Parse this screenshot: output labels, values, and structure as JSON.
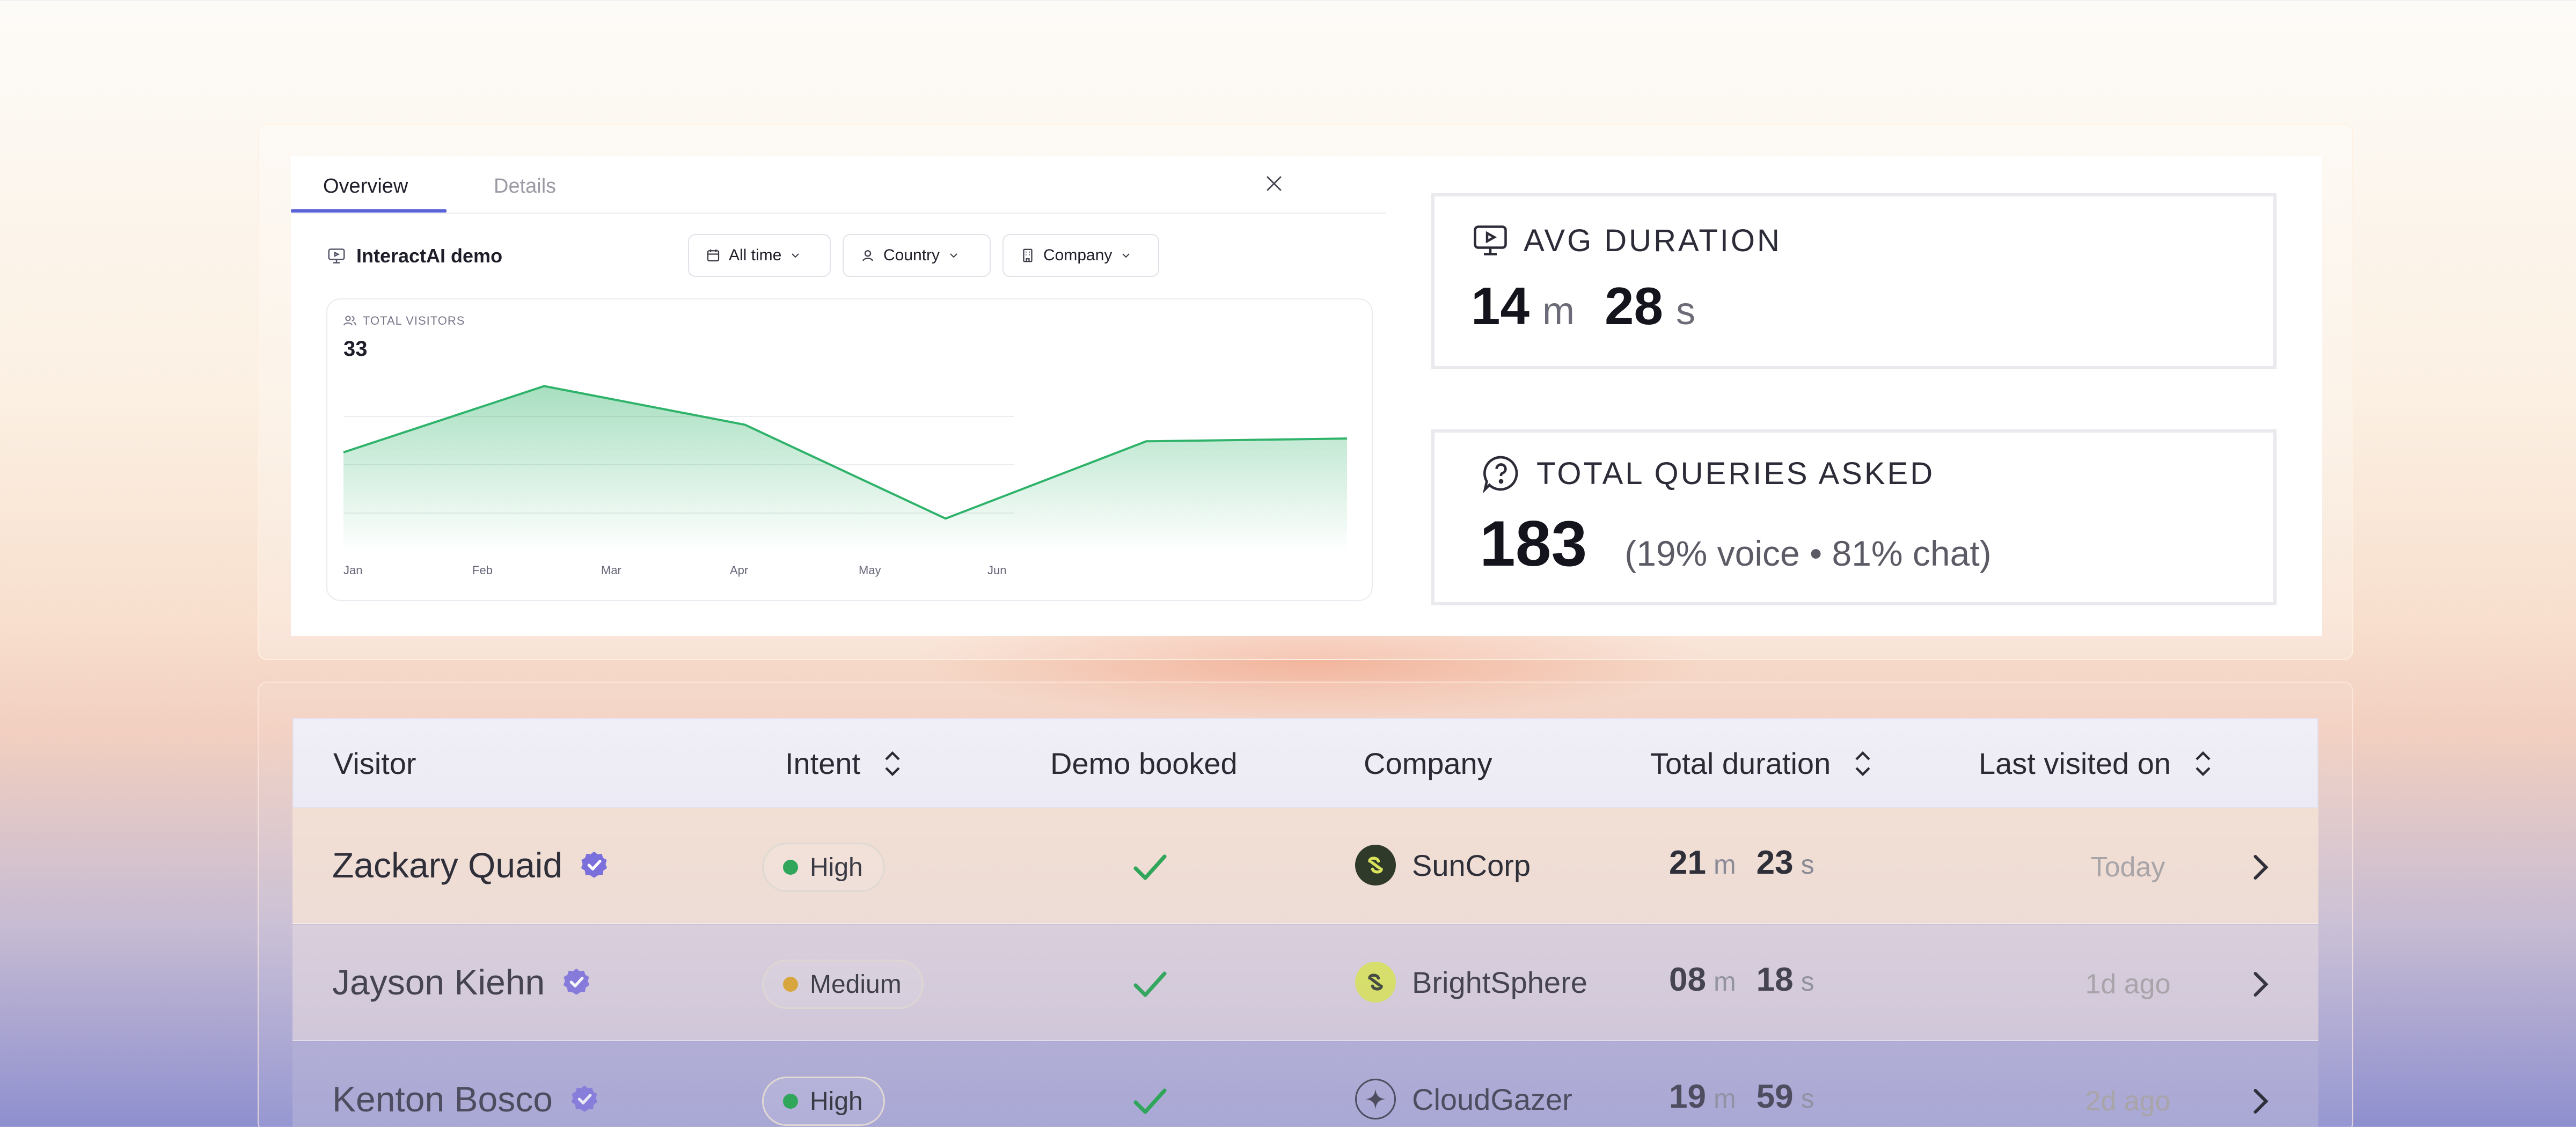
{
  "tabs": [
    {
      "label": "Overview",
      "active": true
    },
    {
      "label": "Details",
      "active": false
    }
  ],
  "demo": {
    "title": "InteractAI demo",
    "icon": "monitor-play-icon"
  },
  "filters": {
    "time": "All time",
    "country": "Country",
    "company": "Company"
  },
  "chart": {
    "label": "TOTAL VISITORS",
    "total": "33"
  },
  "chart_data": {
    "type": "area",
    "title": "",
    "categories": [
      "Jan",
      "Feb",
      "Mar",
      "Apr",
      "May",
      "Jun"
    ],
    "series": [
      {
        "values": [
          18,
          30,
          23,
          6,
          20,
          20.5
        ]
      }
    ],
    "ylim": [
      0,
      35
    ],
    "grid": true,
    "color": "#2fb36a"
  },
  "stats": {
    "avg": {
      "title": "AVG DURATION",
      "minutes": "14",
      "minutes_unit": "m",
      "seconds": "28",
      "seconds_unit": "s",
      "icon": "monitor-play-icon"
    },
    "queries": {
      "title": "TOTAL QUERIES ASKED",
      "value": "183",
      "breakdown": "(19% voice • 81% chat)",
      "icon": "chat-question-icon"
    }
  },
  "table": {
    "columns": {
      "visitor": "Visitor",
      "intent": "Intent",
      "demo": "Demo booked",
      "company": "Company",
      "duration": "Total duration",
      "last": "Last visited on"
    },
    "rows": [
      {
        "name": "Zackary Quaid",
        "intent": "High",
        "intent_color": "#2fa65a",
        "demo_booked": true,
        "company": "SunCorp",
        "company_logo_bg": "#2f3a2b",
        "company_logo_fg": "#d9e35b",
        "min": "21",
        "sec": "23",
        "last": "Today"
      },
      {
        "name": "Jayson Kiehn",
        "intent": "Medium",
        "intent_color": "#d9a636",
        "demo_booked": true,
        "company": "BrightSphere",
        "company_logo_bg": "#d9e35b",
        "company_logo_fg": "#2f3a2b",
        "min": "08",
        "sec": "18",
        "last": "1d ago"
      },
      {
        "name": "Kenton Bosco",
        "intent": "High",
        "intent_color": "#2fa65a",
        "demo_booked": true,
        "company": "CloudGazer",
        "company_logo_bg": "transparent",
        "company_logo_fg": "#2f2f3a",
        "min": "19",
        "sec": "59",
        "last": "2d ago"
      }
    ],
    "units": {
      "m": "m",
      "s": "s"
    }
  },
  "colors": {
    "accent": "#5b63d8",
    "verified": "#7b6fdc",
    "check": "#2fa65a"
  }
}
